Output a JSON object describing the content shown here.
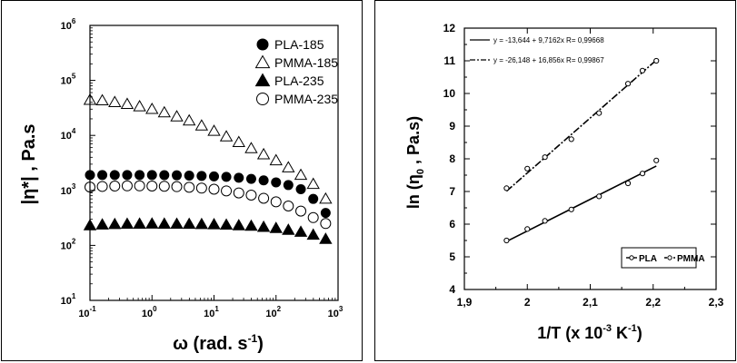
{
  "chart_data": [
    {
      "type": "scatter",
      "x_scale": "log",
      "y_scale": "log",
      "xlim": [
        0.1,
        1000
      ],
      "ylim": [
        10,
        1000000
      ],
      "x_tick_labels": [
        "10",
        "10",
        "10",
        "10",
        "10"
      ],
      "x_tick_exponents": [
        "-1",
        "0",
        "1",
        "2",
        "3"
      ],
      "y_tick_labels": [
        "10",
        "10",
        "10",
        "10",
        "10",
        "10"
      ],
      "y_tick_exponents": [
        "1",
        "2",
        "3",
        "4",
        "5",
        "6"
      ],
      "xlabel": {
        "main": "ω (rad. s",
        "sup": "-1",
        "tail": ")"
      },
      "ylabel": "|η*|  ,  Pa.s",
      "legend_position": "top-right",
      "series": [
        {
          "name": "PLA-185",
          "marker": "filled-circle",
          "x": [
            0.1,
            0.158,
            0.251,
            0.398,
            0.631,
            1,
            1.58,
            2.51,
            3.98,
            6.31,
            10,
            15.8,
            25.1,
            39.8,
            63.1,
            100,
            158,
            251,
            398,
            631
          ],
          "y": [
            1900,
            1900,
            1900,
            1900,
            1900,
            1900,
            1890,
            1880,
            1860,
            1830,
            1800,
            1760,
            1700,
            1620,
            1520,
            1400,
            1250,
            1050,
            700,
            390
          ]
        },
        {
          "name": "PMMA-185",
          "marker": "open-triangle",
          "x": [
            0.1,
            0.158,
            0.251,
            0.398,
            0.631,
            1,
            1.58,
            2.51,
            3.98,
            6.31,
            10,
            15.8,
            25.1,
            39.8,
            63.1,
            100,
            158,
            251,
            398,
            631
          ],
          "y": [
            44000,
            43000,
            40000,
            37000,
            33500,
            30000,
            26000,
            22000,
            18500,
            15000,
            12000,
            9500,
            7500,
            5800,
            4500,
            3500,
            2600,
            1900,
            1300,
            700
          ]
        },
        {
          "name": "PLA-235",
          "marker": "filled-triangle",
          "x": [
            0.1,
            0.158,
            0.251,
            0.398,
            0.631,
            1,
            1.58,
            2.51,
            3.98,
            6.31,
            10,
            15.8,
            25.1,
            39.8,
            63.1,
            100,
            158,
            251,
            398,
            631
          ],
          "y": [
            230,
            238,
            242,
            245,
            246,
            247,
            246,
            245,
            244,
            242,
            240,
            236,
            230,
            225,
            215,
            205,
            190,
            175,
            155,
            130
          ]
        },
        {
          "name": "PMMA-235",
          "marker": "open-circle",
          "x": [
            0.1,
            0.158,
            0.251,
            0.398,
            0.631,
            1,
            1.58,
            2.51,
            3.98,
            6.31,
            10,
            15.8,
            25.1,
            39.8,
            63.1,
            100,
            158,
            251,
            398,
            631
          ],
          "y": [
            1150,
            1180,
            1200,
            1210,
            1210,
            1200,
            1190,
            1170,
            1140,
            1100,
            1050,
            980,
            900,
            820,
            720,
            620,
            520,
            420,
            320,
            250
          ]
        }
      ]
    },
    {
      "type": "scatter",
      "xlim": [
        1.9,
        2.3
      ],
      "ylim": [
        4,
        12
      ],
      "x_ticks": [
        "1,9",
        "2",
        "2,1",
        "2,2",
        "2,3"
      ],
      "y_ticks": [
        "4",
        "5",
        "6",
        "7",
        "8",
        "9",
        "10",
        "11",
        "12"
      ],
      "xlabel": {
        "main": "1/T  (x 10",
        "sup": "-3",
        "mid": "  K",
        "sup2": "-1",
        "tail": ")"
      },
      "ylabel": {
        "main": "ln (η",
        "sub": "0",
        "tail": " , Pa.s)"
      },
      "equations": [
        "y = -13,644 + 9,7162x  R= 0,99668",
        "y = -26,148 + 16,856x  R= 0,99867"
      ],
      "legend_position": "bottom-right",
      "series": [
        {
          "name": "PLA",
          "marker": "open-circle",
          "line": "solid",
          "x": [
            1.967,
            2.0,
            2.028,
            2.07,
            2.114,
            2.16,
            2.183,
            2.205
          ],
          "y": [
            5.5,
            5.85,
            6.1,
            6.45,
            6.85,
            7.25,
            7.55,
            7.95
          ],
          "fit": {
            "x": [
              1.967,
              2.205
            ],
            "y": [
              5.47,
              7.78
            ]
          }
        },
        {
          "name": "PMMA",
          "marker": "open-circle",
          "line": "dashed",
          "x": [
            1.967,
            2.0,
            2.028,
            2.07,
            2.114,
            2.16,
            2.183,
            2.205
          ],
          "y": [
            7.1,
            7.7,
            8.05,
            8.6,
            9.4,
            10.3,
            10.7,
            11.0
          ],
          "fit": {
            "x": [
              1.967,
              2.205
            ],
            "y": [
              7.01,
              11.02
            ]
          }
        }
      ]
    }
  ]
}
